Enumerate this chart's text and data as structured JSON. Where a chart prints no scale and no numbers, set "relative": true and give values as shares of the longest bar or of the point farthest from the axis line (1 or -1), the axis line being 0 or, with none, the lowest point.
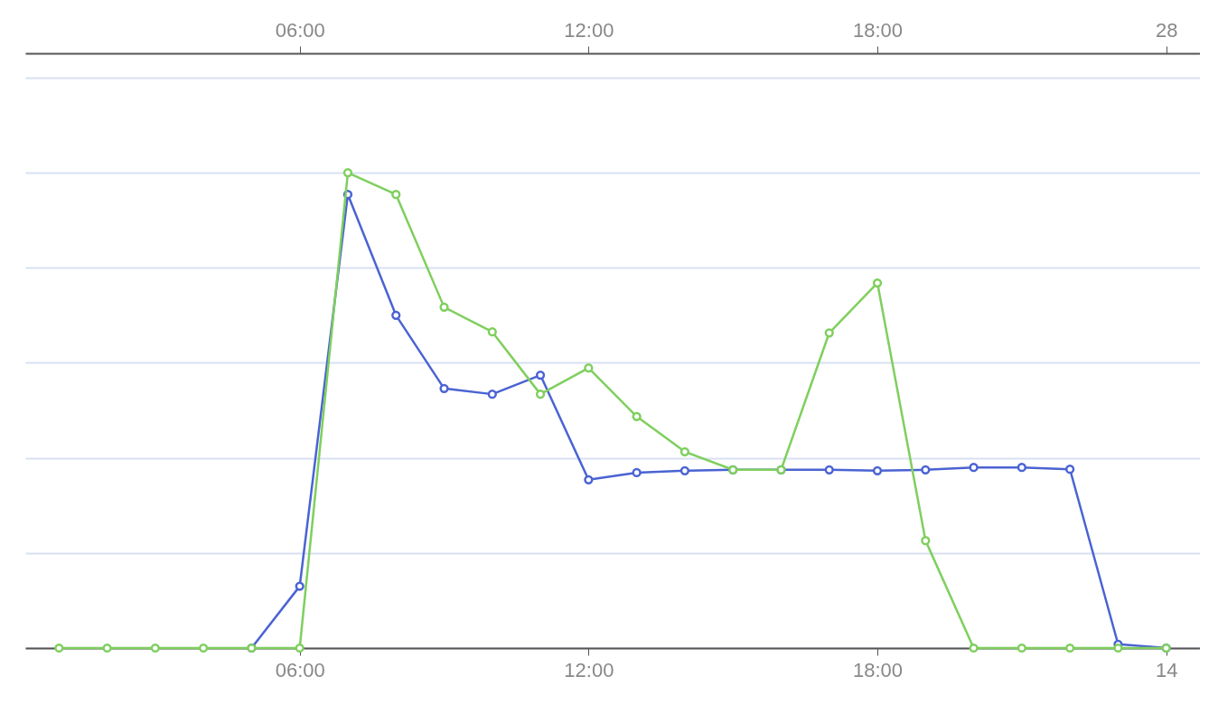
{
  "chart_data": {
    "type": "line",
    "relative": true,
    "x": [
      "--01-13T01:00",
      "--01-13T02:00",
      "--01-13T03:00",
      "--01-13T04:00",
      "--01-13T05:00",
      "--01-13T06:00",
      "--01-13T07:00",
      "--01-13T08:00",
      "--01-13T09:00",
      "--01-13T10:00",
      "--01-13T11:00",
      "--01-13T12:00",
      "--01-13T13:00",
      "--01-13T14:00",
      "--01-13T15:00",
      "--01-13T16:00",
      "--01-13T17:00",
      "--01-13T18:00",
      "--01-13T19:00",
      "--01-13T20:00",
      "--01-13T21:00",
      "--01-13T22:00",
      "--01-13T23:00",
      "--01-14T00:00"
    ],
    "series": [
      {
        "color": "#4a63d3",
        "values": [
          null,
          null,
          null,
          null,
          0,
          0.13,
          0.954,
          0.7,
          0.546,
          0.534,
          0.574,
          0.354,
          0.369,
          0.373,
          0.375,
          0.375,
          0.375,
          0.373,
          0.375,
          0.38,
          0.38,
          0.376,
          0.008,
          0
        ]
      },
      {
        "color": "#7fcf5e",
        "values": [
          0,
          0,
          0,
          0,
          0,
          0,
          1,
          0.954,
          0.717,
          0.665,
          0.534,
          0.589,
          0.487,
          0.413,
          0.375,
          0.375,
          0.663,
          0.768,
          0.226,
          0,
          0,
          0,
          0,
          0
        ]
      }
    ],
    "xlim": [
      "--01-13T00:18",
      "--01-14T00:42"
    ],
    "xticks": [
      {
        "value": "--01-13T06:00",
        "label": "06:00"
      },
      {
        "value": "--01-13T12:00",
        "label": "12:00"
      },
      {
        "value": "--01-13T18:00",
        "label": "18:00"
      },
      {
        "value": "--01-14T00:00",
        "label": "14"
      }
    ],
    "x2lim": [
      "--01-27T00:18",
      "--01-28T00:42"
    ],
    "x2ticks": [
      {
        "value": "--01-27T06:00",
        "label": "06:00"
      },
      {
        "value": "--01-27T12:00",
        "label": "12:00"
      },
      {
        "value": "--01-27T18:00",
        "label": "18:00"
      },
      {
        "value": "--01-28T00:00",
        "label": "28"
      }
    ],
    "grid": "y",
    "marker": "circle",
    "line_style": "solid"
  }
}
